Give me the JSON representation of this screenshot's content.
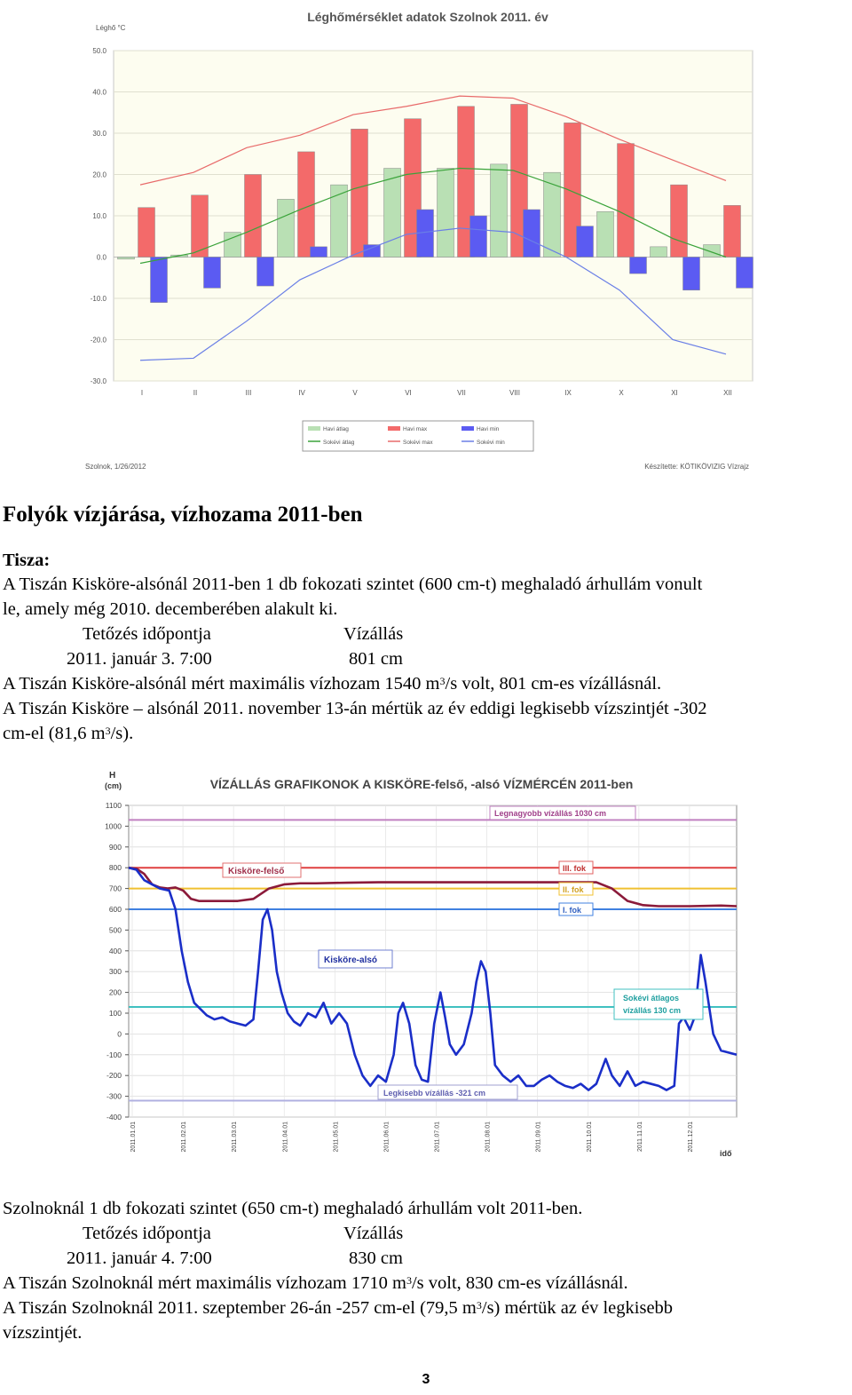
{
  "chart1": {
    "title": "Léghőmérséklet adatok Szolnok 2011. év",
    "ylabel": "Léghő °C",
    "yticks": [
      "50.0",
      "40.0",
      "30.0",
      "20.0",
      "10.0",
      "0.0",
      "-10.0",
      "-20.0",
      "-30.0"
    ],
    "months": [
      "I",
      "II",
      "III",
      "IV",
      "V",
      "VI",
      "VII",
      "VIII",
      "IX",
      "X",
      "XI",
      "XII"
    ],
    "legend": [
      "Havi átlag",
      "Havi max",
      "Havi min",
      "Sokévi átlag",
      "Sokévi max",
      "Sokévi min"
    ],
    "footer_left": "Szolnok, 1/26/2012",
    "footer_right": "Készítette: KÖTIKÖVIZIG Vízrajz"
  },
  "chart1_data": {
    "type": "bar",
    "categories": [
      "I",
      "II",
      "III",
      "IV",
      "V",
      "VI",
      "VII",
      "VIII",
      "IX",
      "X",
      "XI",
      "XII"
    ],
    "ylim": [
      -30,
      50
    ],
    "series": [
      {
        "name": "Havi átlag",
        "kind": "bar",
        "color": "#b9e0b4",
        "values": [
          -0.5,
          0.5,
          6,
          14,
          17.5,
          21.5,
          21.5,
          22.5,
          20.5,
          11,
          2.5,
          3
        ]
      },
      {
        "name": "Havi max",
        "kind": "bar",
        "color": "#f36a6a",
        "values": [
          12,
          15,
          20,
          25.5,
          31,
          33.5,
          36.5,
          37,
          32.5,
          27.5,
          17.5,
          12.5
        ]
      },
      {
        "name": "Havi min",
        "kind": "bar",
        "color": "#5b5bf2",
        "values": [
          -11,
          -7.5,
          -7,
          2.5,
          3,
          11.5,
          10,
          11.5,
          7.5,
          -4,
          -8,
          -7.5
        ]
      },
      {
        "name": "Sokévi átlag",
        "kind": "line",
        "color": "#3aa33a",
        "values": [
          -1.5,
          1,
          6,
          11.5,
          16.5,
          20,
          21.5,
          21,
          16.5,
          11,
          4.5,
          0
        ]
      },
      {
        "name": "Sokévi max",
        "kind": "line",
        "color": "#e86a6a",
        "values": [
          17.5,
          20.5,
          26.5,
          29.5,
          34.5,
          36.5,
          39,
          38.5,
          34,
          28.5,
          23.5,
          18.5
        ]
      },
      {
        "name": "Sokévi min",
        "kind": "line",
        "color": "#6a7fe6",
        "values": [
          -25,
          -24.5,
          -15.5,
          -5.5,
          0.5,
          5.5,
          7,
          6,
          0,
          -8,
          -20,
          -23.5
        ]
      }
    ]
  },
  "heading": "Folyók vízjárása, vízhozama 2011-ben",
  "tisza_label": "Tisza:",
  "para1_line1": "A Tiszán Kisköre-alsónál 2011-ben 1 db fokozati szintet (600 cm-t) meghaladó árhullám vonult",
  "para1_line2": "le, amely még 2010. decemberében alakult ki.",
  "table1": {
    "col1_header": "Tetőzés időpontja",
    "col2_header": "Vízállás",
    "col1_value": "2011. január 3. 7:00",
    "col2_value": "801 cm"
  },
  "line_max1_a": "A Tiszán Kisköre-alsónál mért maximális vízhozam 1540 m",
  "line_max1_sup": "3",
  "line_max1_b": "/s volt, 801 cm-es vízállásnál.",
  "line_min1_a": "A Tiszán Kisköre – alsónál 2011. november 13-án mértük az év eddigi legkisebb vízszintjét -302",
  "line_min1_b": "cm-el (81,6 m",
  "line_min1_sup": "3",
  "line_min1_c": "/s).",
  "chart2": {
    "title": "VÍZÁLLÁS GRAFIKONOK A KISKÖRE-felső, -alsó VÍZMÉRCÉN 2011-ben",
    "ylabel_h": "H",
    "ylabel_unit": "(cm)",
    "xlabel": "idő",
    "yticks": [
      "1100",
      "1000",
      "900",
      "800",
      "700",
      "600",
      "500",
      "400",
      "300",
      "200",
      "100",
      "0",
      "-100",
      "-200",
      "-300",
      "-400"
    ],
    "xticks": [
      "2011.01.01",
      "2011.02.01",
      "2011.03.01",
      "2011.04.01",
      "2011.05.01",
      "2011.06.01",
      "2011.07.01",
      "2011.08.01",
      "2011.09.01",
      "2011.10.01",
      "2011.11.01",
      "2011.12.01"
    ],
    "label_max": "Legnagyobb vízállás 1030 cm",
    "label_felso": "Kisköre-felső",
    "label_also": "Kisköre-alsó",
    "label_fok3": "III. fok",
    "label_fok2": "II. fok",
    "label_fok1": "I. fok",
    "label_avg_1": "Sokévi átlagos",
    "label_avg_2": "vízállás 130 cm",
    "label_min": "Legkisebb vízállás -321 cm"
  },
  "chart2_data": {
    "type": "line",
    "ylim": [
      -400,
      1100
    ],
    "reference_lines": [
      {
        "name": "Legnagyobb vízállás",
        "value": 1030,
        "color": "#c080c0"
      },
      {
        "name": "III. fok",
        "value": 800,
        "color": "#e04040"
      },
      {
        "name": "II. fok",
        "value": 700,
        "color": "#f0c030"
      },
      {
        "name": "I. fok",
        "value": 600,
        "color": "#4080e0"
      },
      {
        "name": "Sokévi átlagos vízállás",
        "value": 130,
        "color": "#40c0c0"
      },
      {
        "name": "Legkisebb vízállás",
        "value": -321,
        "color": "#b0b0e0"
      }
    ],
    "series": [
      {
        "name": "Kisköre-felső",
        "color": "#8b1a3a",
        "points": [
          [
            0,
            800
          ],
          [
            0.5,
            795
          ],
          [
            1,
            770
          ],
          [
            1.5,
            720
          ],
          [
            2,
            705
          ],
          [
            2.5,
            700
          ],
          [
            3,
            705
          ],
          [
            3.5,
            690
          ],
          [
            4,
            650
          ],
          [
            4.5,
            640
          ],
          [
            5,
            640
          ],
          [
            6,
            640
          ],
          [
            7,
            640
          ],
          [
            8,
            650
          ],
          [
            9,
            700
          ],
          [
            10,
            720
          ],
          [
            11,
            725
          ],
          [
            12,
            725
          ],
          [
            14,
            728
          ],
          [
            16,
            730
          ],
          [
            18,
            730
          ],
          [
            20,
            730
          ],
          [
            22,
            730
          ],
          [
            24,
            730
          ],
          [
            26,
            730
          ],
          [
            28,
            730
          ],
          [
            30,
            730
          ],
          [
            31,
            700
          ],
          [
            32,
            640
          ],
          [
            33,
            620
          ],
          [
            34,
            615
          ],
          [
            36,
            615
          ],
          [
            38,
            618
          ],
          [
            39,
            615
          ]
        ]
      },
      {
        "name": "Kisköre-alsó",
        "color": "#1a2ec8",
        "points": [
          [
            0,
            800
          ],
          [
            0.5,
            790
          ],
          [
            1,
            740
          ],
          [
            1.5,
            720
          ],
          [
            2,
            700
          ],
          [
            2.6,
            690
          ],
          [
            3,
            600
          ],
          [
            3.4,
            400
          ],
          [
            3.8,
            250
          ],
          [
            4.2,
            150
          ],
          [
            4.6,
            120
          ],
          [
            5,
            90
          ],
          [
            5.5,
            70
          ],
          [
            6,
            80
          ],
          [
            6.5,
            60
          ],
          [
            7,
            50
          ],
          [
            7.5,
            40
          ],
          [
            8,
            70
          ],
          [
            8.3,
            300
          ],
          [
            8.6,
            550
          ],
          [
            8.9,
            600
          ],
          [
            9.2,
            500
          ],
          [
            9.5,
            300
          ],
          [
            9.8,
            200
          ],
          [
            10.2,
            100
          ],
          [
            10.6,
            60
          ],
          [
            11,
            40
          ],
          [
            11.5,
            100
          ],
          [
            12,
            80
          ],
          [
            12.5,
            150
          ],
          [
            13,
            50
          ],
          [
            13.5,
            100
          ],
          [
            14,
            50
          ],
          [
            14.5,
            -100
          ],
          [
            15,
            -200
          ],
          [
            15.5,
            -250
          ],
          [
            16,
            -200
          ],
          [
            16.5,
            -230
          ],
          [
            17,
            -100
          ],
          [
            17.3,
            100
          ],
          [
            17.6,
            150
          ],
          [
            18,
            50
          ],
          [
            18.4,
            -150
          ],
          [
            18.8,
            -220
          ],
          [
            19.2,
            -230
          ],
          [
            19.6,
            50
          ],
          [
            20,
            200
          ],
          [
            20.3,
            80
          ],
          [
            20.6,
            -50
          ],
          [
            21,
            -100
          ],
          [
            21.5,
            -50
          ],
          [
            22,
            100
          ],
          [
            22.3,
            250
          ],
          [
            22.6,
            350
          ],
          [
            22.9,
            300
          ],
          [
            23.2,
            100
          ],
          [
            23.5,
            -150
          ],
          [
            24,
            -200
          ],
          [
            24.5,
            -230
          ],
          [
            25,
            -200
          ],
          [
            25.5,
            -250
          ],
          [
            26,
            -250
          ],
          [
            26.5,
            -220
          ],
          [
            27,
            -200
          ],
          [
            27.5,
            -230
          ],
          [
            28,
            -250
          ],
          [
            28.5,
            -260
          ],
          [
            29,
            -240
          ],
          [
            29.5,
            -270
          ],
          [
            30,
            -240
          ],
          [
            30.3,
            -180
          ],
          [
            30.6,
            -120
          ],
          [
            31,
            -200
          ],
          [
            31.5,
            -250
          ],
          [
            32,
            -180
          ],
          [
            32.5,
            -250
          ],
          [
            33,
            -230
          ],
          [
            33.5,
            -240
          ],
          [
            34,
            -250
          ],
          [
            34.5,
            -270
          ],
          [
            35,
            -250
          ],
          [
            35.3,
            50
          ],
          [
            35.6,
            80
          ],
          [
            36,
            20
          ],
          [
            36.3,
            80
          ],
          [
            36.7,
            380
          ],
          [
            37,
            250
          ],
          [
            37.5,
            0
          ],
          [
            38,
            -80
          ],
          [
            39,
            -100
          ]
        ]
      }
    ]
  },
  "para2": "Szolnoknál 1 db fokozati szintet (650 cm-t) meghaladó árhullám volt 2011-ben.",
  "table2": {
    "col1_header": "Tetőzés időpontja",
    "col2_header": "Vízállás",
    "col1_value": "2011. január 4. 7:00",
    "col2_value": "830 cm"
  },
  "line_max2_a": "A Tiszán Szolnoknál mért maximális vízhozam 1710 m",
  "line_max2_sup": "3",
  "line_max2_b": "/s volt, 830 cm-es vízállásnál.",
  "line_min2_a": "A Tiszán Szolnoknál 2011. szeptember 26-án -257 cm-el (79,5 m",
  "line_min2_sup": "3",
  "line_min2_b": "/s) mértük az év legkisebb",
  "line_min2_c": "vízszintjét.",
  "page_number": "3"
}
